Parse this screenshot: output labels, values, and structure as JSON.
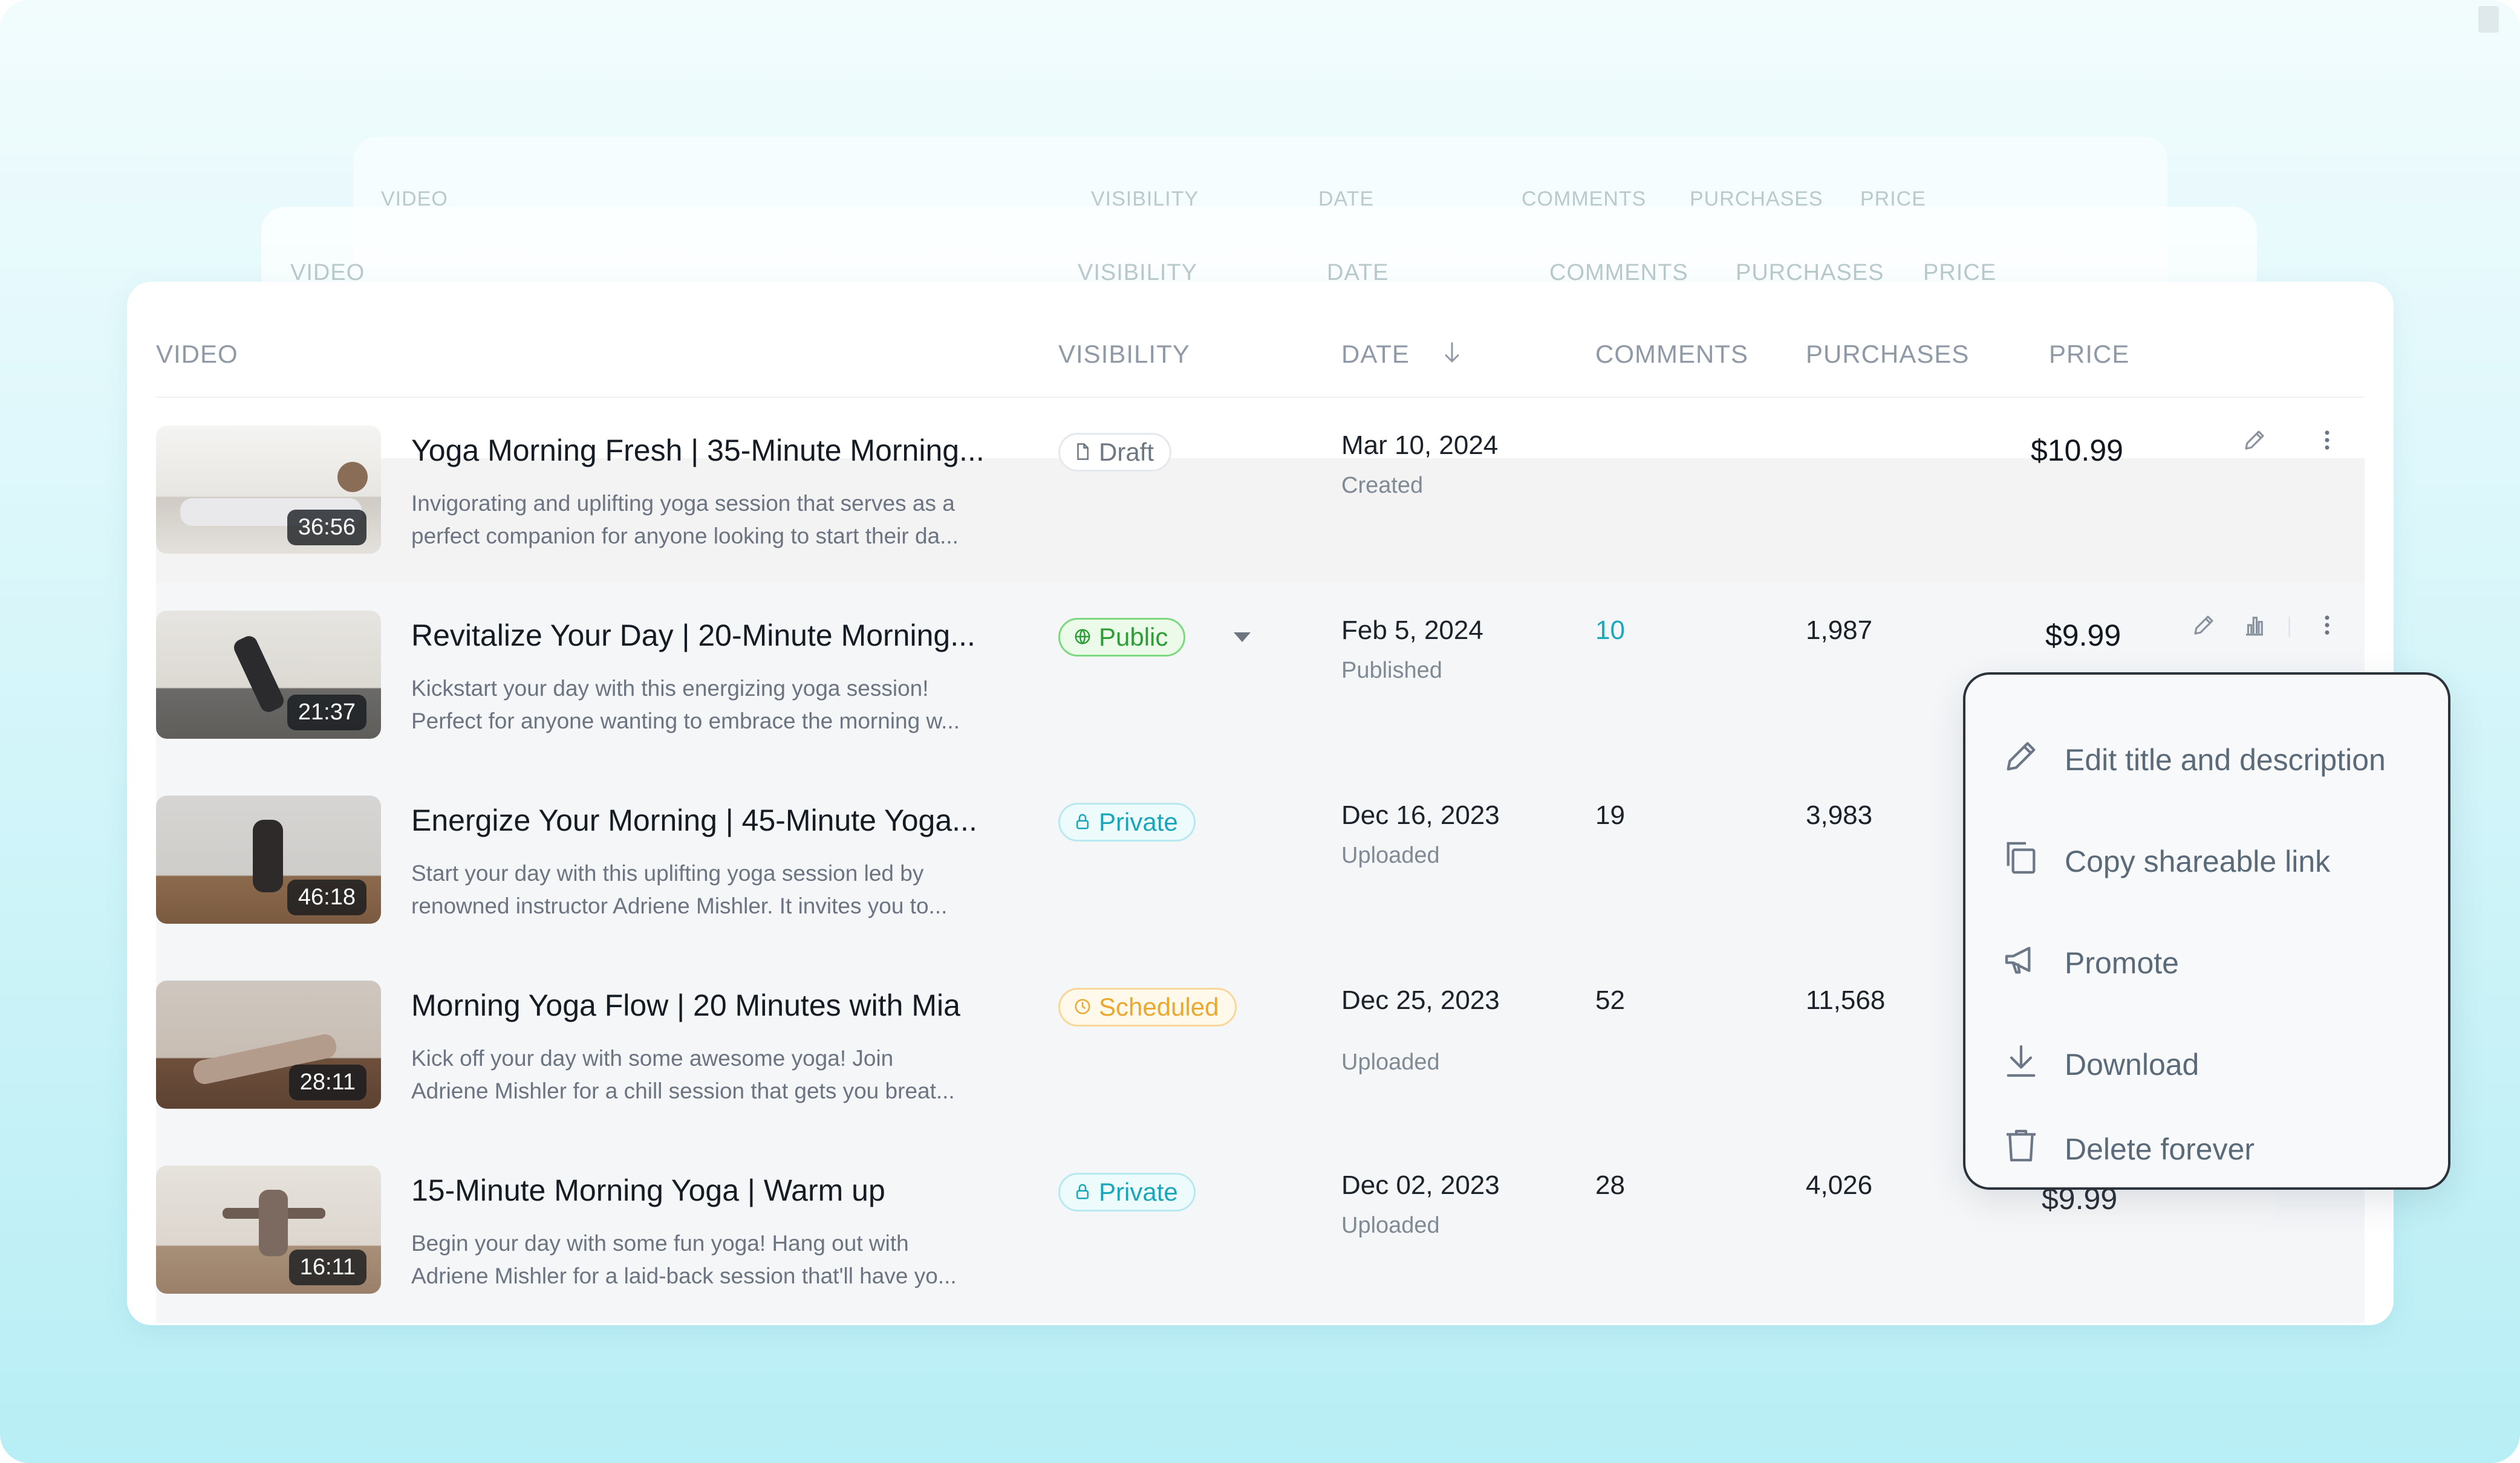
{
  "back_headers": {
    "video": "VIDEO",
    "visibility": "VISIBILITY",
    "date": "DATE",
    "comments": "COMMENTS",
    "purchases": "PURCHASES",
    "price": "PRICE"
  },
  "table": {
    "headers": {
      "video": "VIDEO",
      "visibility": "VISIBILITY",
      "date": "DATE",
      "comments": "COMMENTS",
      "purchases": "PURCHASES",
      "price": "PRICE"
    },
    "rows": [
      {
        "title": "Yoga Morning Fresh | 35-Minute Morning...",
        "desc1": "Invigorating and uplifting yoga session that serves as a",
        "desc2": "perfect companion for anyone looking to start their da...",
        "duration": "36:56",
        "visibility": "Draft",
        "date": "Mar 10, 2024",
        "date_status": "Created",
        "comments": "",
        "purchases": "",
        "price": "$10.99"
      },
      {
        "title": "Revitalize Your Day | 20-Minute Morning...",
        "desc1": "Kickstart your day with this energizing yoga session!",
        "desc2": "Perfect for anyone wanting to embrace the morning w...",
        "duration": "21:37",
        "visibility": "Public",
        "date": "Feb 5, 2024",
        "date_status": "Published",
        "comments": "10",
        "purchases": "1,987",
        "price": "$9.99"
      },
      {
        "title": "Energize Your Morning | 45-Minute Yoga...",
        "desc1": "Start your day with this uplifting yoga session led by",
        "desc2": "renowned instructor Adriene Mishler. It invites you to...",
        "duration": "46:18",
        "visibility": "Private",
        "date": "Dec 16, 2023",
        "date_status": "Uploaded",
        "comments": "19",
        "purchases": "3,983",
        "price": ""
      },
      {
        "title": "Morning Yoga Flow | 20 Minutes with Mia",
        "desc1": "Kick off your day with some awesome yoga! Join",
        "desc2": "Adriene Mishler for a chill session that gets you breat...",
        "duration": "28:11",
        "visibility": "Scheduled",
        "date": "Dec 25, 2023",
        "date_status": "Uploaded",
        "comments": "52",
        "purchases": "11,568",
        "price": ""
      },
      {
        "title": "15-Minute Morning Yoga | Warm up",
        "desc1": "Begin your day with some fun yoga! Hang out with",
        "desc2": "Adriene Mishler for a laid-back session that'll have yo...",
        "duration": "16:11",
        "visibility": "Private",
        "date": "Dec 02, 2023",
        "date_status": "Uploaded",
        "comments": "28",
        "purchases": "4,026",
        "price": "$9.99"
      }
    ]
  },
  "context_menu": {
    "items": [
      {
        "label": "Edit title and description",
        "icon": "pencil-icon"
      },
      {
        "label": "Copy shareable link",
        "icon": "copy-icon"
      },
      {
        "label": "Promote",
        "icon": "megaphone-icon"
      },
      {
        "label": "Download",
        "icon": "download-icon"
      },
      {
        "label": "Delete forever",
        "icon": "trash-icon"
      }
    ]
  },
  "colors": {
    "accent_teal": "#1aa9ba",
    "public_green": "#2f9d37",
    "scheduled_amber": "#eba82c",
    "private_teal": "#18a6b8"
  }
}
